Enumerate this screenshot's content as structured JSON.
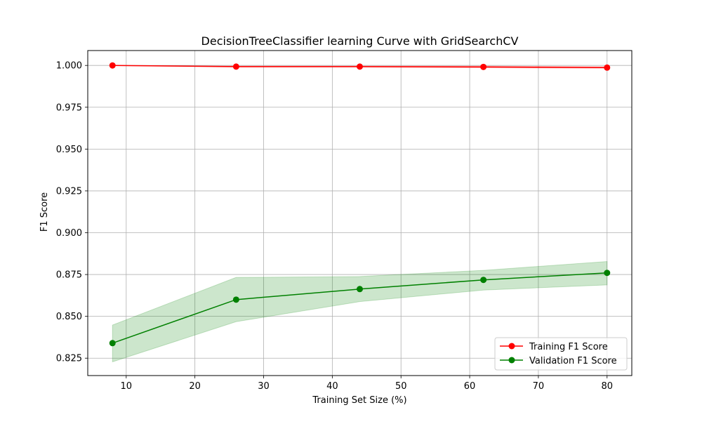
{
  "chart_data": {
    "type": "line",
    "title": "DecisionTreeClassifier learning Curve with GridSearchCV",
    "xlabel": "Training Set Size (%)",
    "ylabel": "F1 Score",
    "xlim": [
      4.4,
      83.6
    ],
    "ylim": [
      0.8146,
      1.0089
    ],
    "xticks": [
      10,
      20,
      30,
      40,
      50,
      60,
      70,
      80
    ],
    "yticks": [
      0.825,
      0.85,
      0.875,
      0.9,
      0.925,
      0.95,
      0.975,
      1.0
    ],
    "ytick_labels": [
      "0.825",
      "0.850",
      "0.875",
      "0.900",
      "0.925",
      "0.950",
      "0.975",
      "1.000"
    ],
    "grid": true,
    "legend_position": "lower-right",
    "x": [
      8,
      26,
      44,
      62,
      80
    ],
    "series": [
      {
        "name": "Training F1 Score",
        "color": "#ff0000",
        "marker": "circle",
        "values": [
          1.0,
          0.9993,
          0.9993,
          0.9991,
          0.9987
        ],
        "band_lower": [
          1.0,
          0.999,
          0.999,
          0.9986,
          0.9983
        ],
        "band_upper": [
          1.0,
          0.9996,
          0.9996,
          0.9996,
          0.9992
        ]
      },
      {
        "name": "Validation F1 Score",
        "color": "#008000",
        "marker": "circle",
        "band_color": "#008000",
        "band_opacity": 0.2,
        "values": [
          0.834,
          0.86,
          0.8663,
          0.8718,
          0.876
        ],
        "band_lower": [
          0.8228,
          0.8468,
          0.8588,
          0.8657,
          0.8688
        ],
        "band_upper": [
          0.8448,
          0.8733,
          0.8738,
          0.8775,
          0.8828
        ]
      }
    ]
  }
}
